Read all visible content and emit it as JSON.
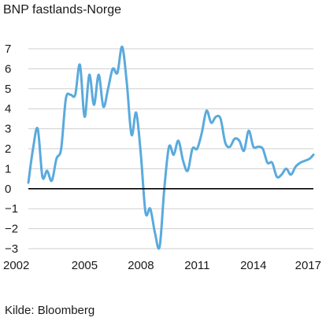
{
  "title": "BNP fastlands-Norge",
  "source": "Kilde: Bloomberg",
  "chart_data": {
    "type": "line",
    "title": "BNP fastlands-Norge",
    "xlabel": "",
    "ylabel": "",
    "xlim": [
      2002,
      2017.2
    ],
    "ylim": [
      -3,
      7
    ],
    "y_ticks": [
      7,
      6,
      5,
      4,
      3,
      2,
      1,
      0,
      -1,
      -2,
      -3
    ],
    "x_ticks": [
      2002,
      2005,
      2008,
      2011,
      2014,
      2017
    ],
    "grid": "horizontal",
    "legend": "none",
    "colors": {
      "line": "#5aaadd",
      "zero_line": "#000000",
      "grid": "#cfcfcf"
    },
    "series": [
      {
        "x": [
          2002.0,
          2002.25,
          2002.5,
          2002.75,
          2003.0,
          2003.25,
          2003.5,
          2003.75,
          2004.0,
          2004.25,
          2004.5,
          2004.75,
          2005.0,
          2005.25,
          2005.5,
          2005.75,
          2006.0,
          2006.25,
          2006.5,
          2006.75,
          2007.0,
          2007.25,
          2007.5,
          2007.75,
          2008.0,
          2008.25,
          2008.5,
          2008.75,
          2009.0,
          2009.25,
          2009.5,
          2009.75,
          2010.0,
          2010.25,
          2010.5,
          2010.75,
          2011.0,
          2011.25,
          2011.5,
          2011.75,
          2012.0,
          2012.25,
          2012.5,
          2012.75,
          2013.0,
          2013.25,
          2013.5,
          2013.75,
          2014.0,
          2014.25,
          2014.5,
          2014.75,
          2015.0,
          2015.25,
          2015.5,
          2015.75,
          2016.0,
          2016.25,
          2016.5,
          2016.75,
          2017.0,
          2017.2
        ],
        "values": [
          0.3,
          2.0,
          3.0,
          0.6,
          0.9,
          0.4,
          1.5,
          2.0,
          4.5,
          4.7,
          4.7,
          6.2,
          3.6,
          5.7,
          4.2,
          5.7,
          4.1,
          5.0,
          6.0,
          5.8,
          7.1,
          5.3,
          2.7,
          3.8,
          1.7,
          -1.2,
          -1.0,
          -2.2,
          -2.9,
          0.0,
          2.1,
          1.7,
          2.4,
          1.4,
          0.9,
          2.0,
          2.0,
          2.8,
          3.9,
          3.3,
          3.6,
          3.5,
          2.3,
          2.1,
          2.5,
          2.4,
          1.9,
          2.9,
          2.1,
          2.1,
          2.0,
          1.3,
          1.3,
          0.6,
          0.7,
          1.0,
          0.7,
          1.1,
          1.3,
          1.4,
          1.5,
          1.7
        ]
      }
    ]
  }
}
